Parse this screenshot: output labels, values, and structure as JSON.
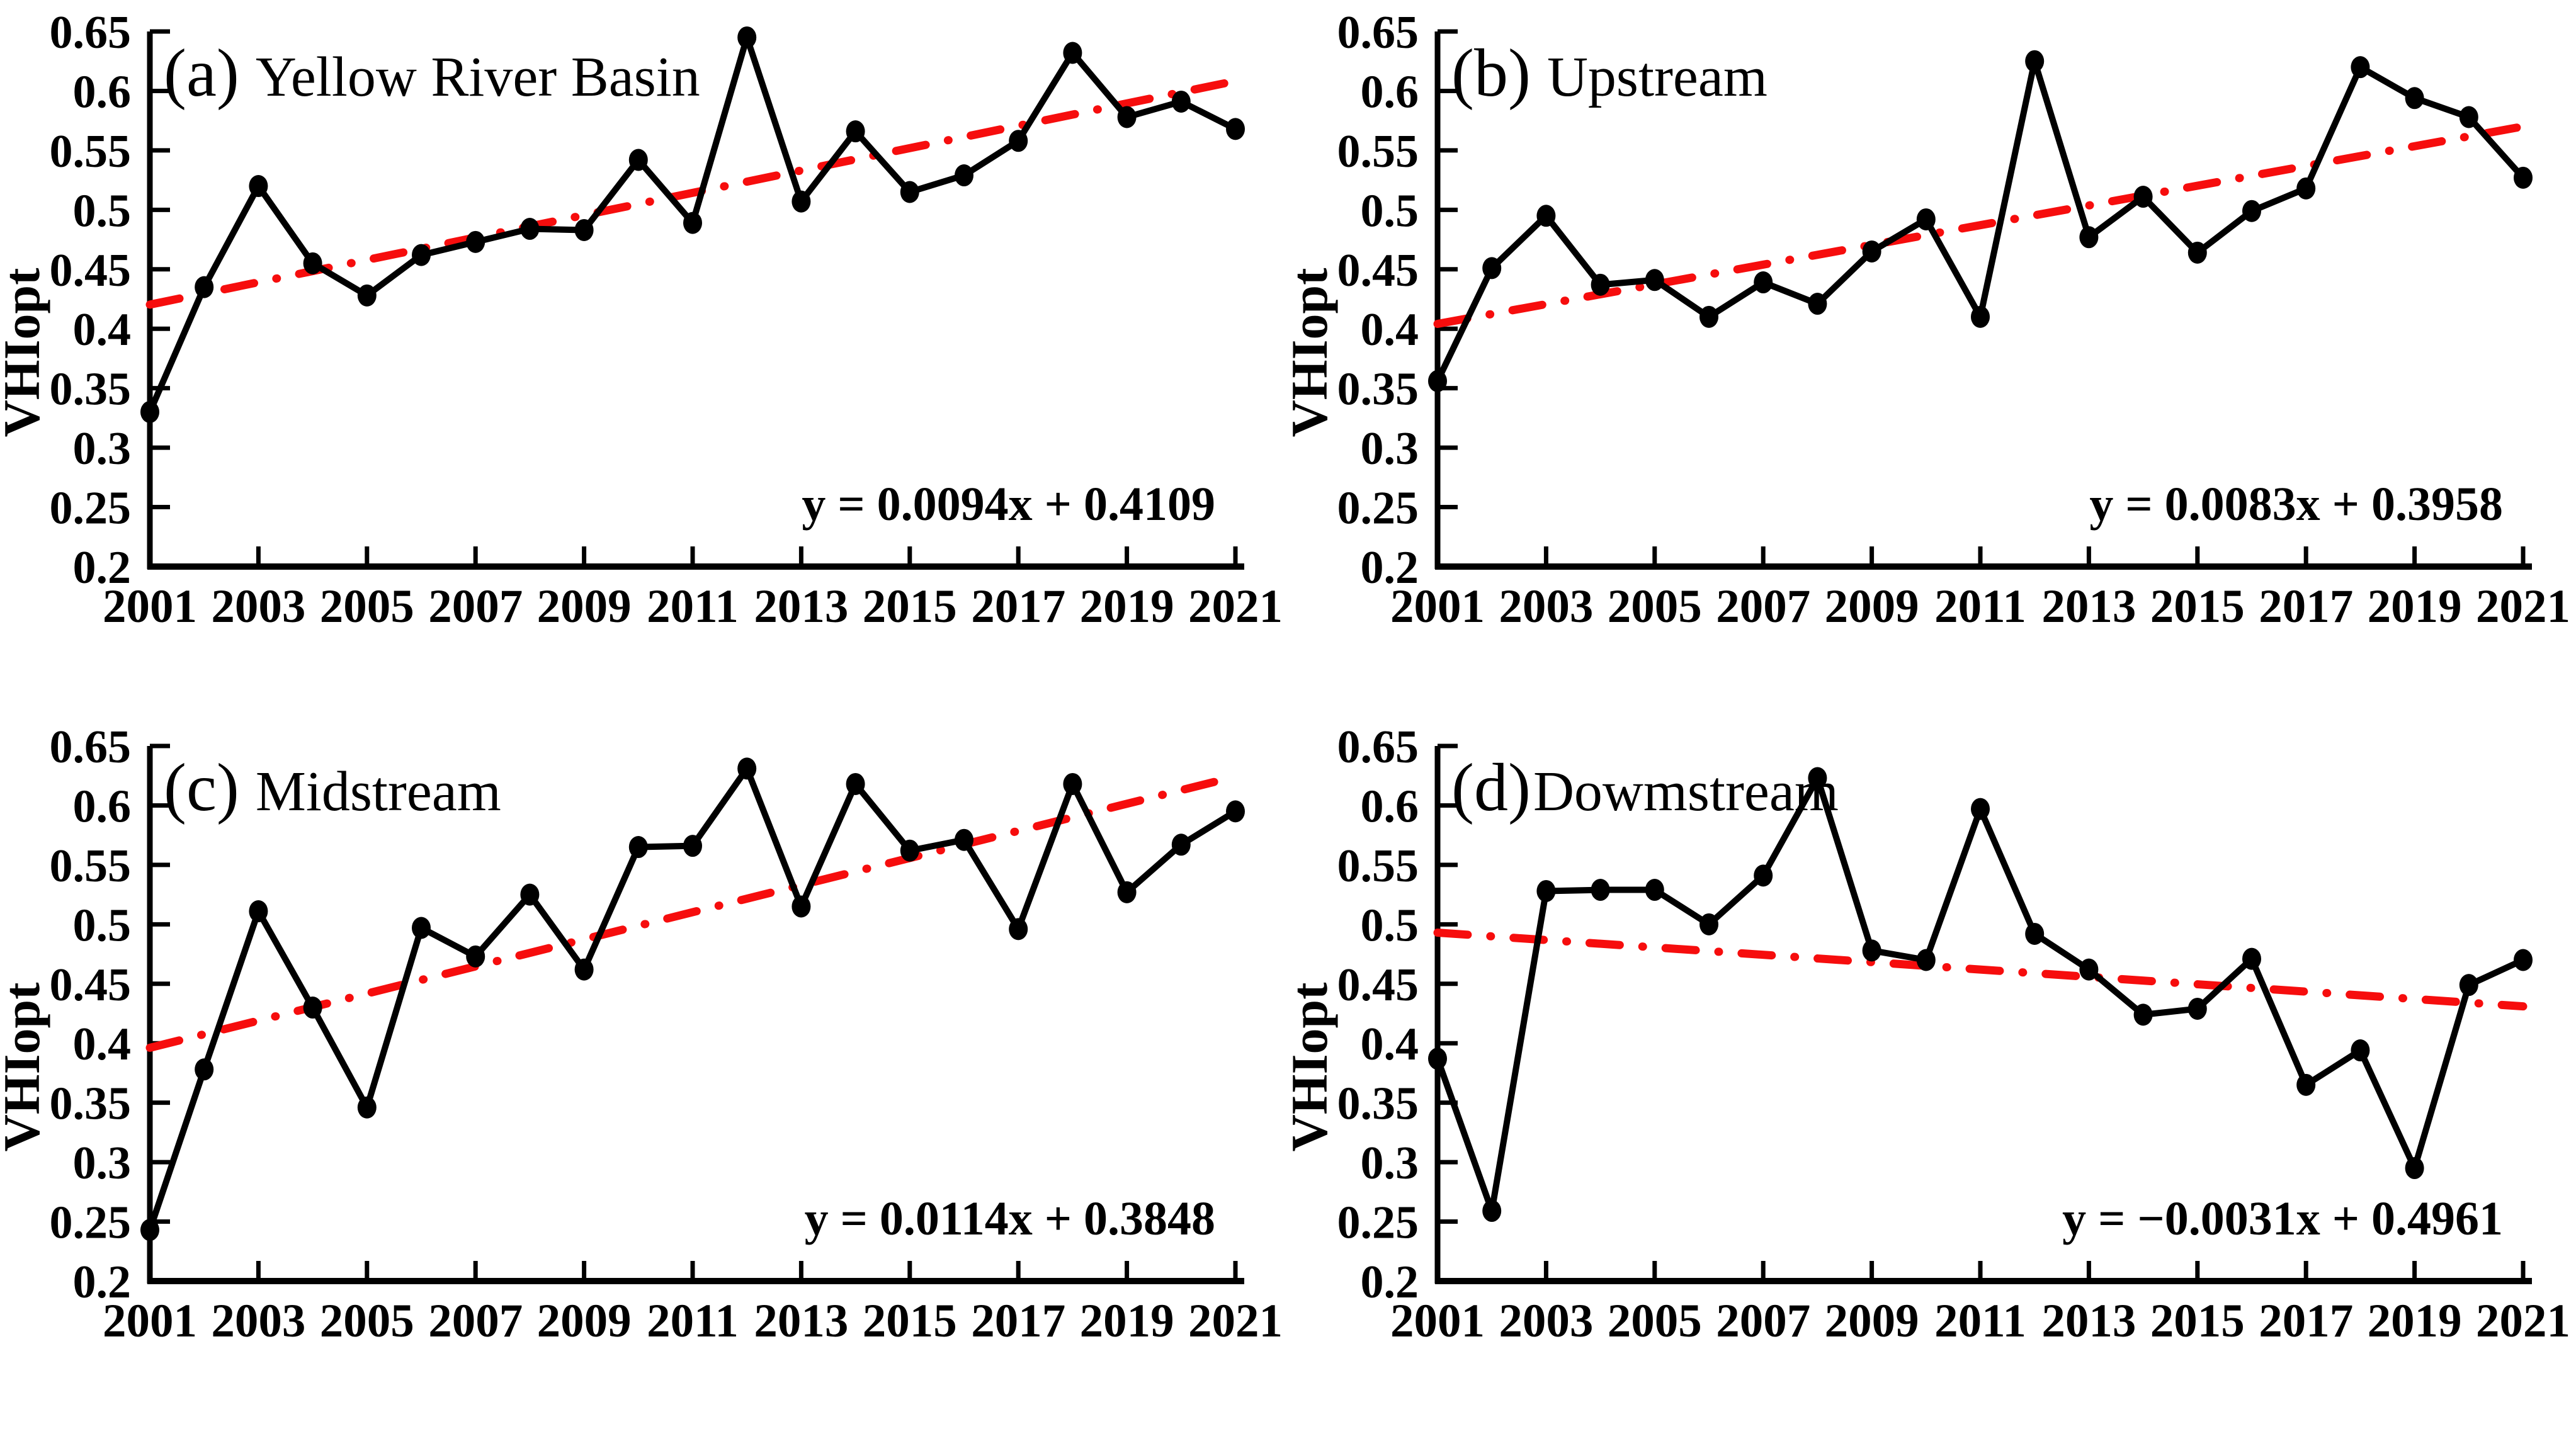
{
  "figure": {
    "background": "#ffffff",
    "axis_color": "#000000",
    "text_color": "#000000",
    "line_color": "#000000",
    "trend_color": "#f60d0d"
  },
  "chart_data": [
    {
      "type": "line",
      "panel_label": "(a)",
      "title": "Yellow River Basin",
      "title_separator": " ",
      "ylabel": "VHIopt",
      "equation": "y = 0.0094x + 0.4109",
      "trend_slope": 0.0094,
      "trend_intercept": 0.4109,
      "ylim": [
        0.2,
        0.65
      ],
      "ytick_labels": [
        "0.2",
        "0.25",
        "0.3",
        "0.35",
        "0.4",
        "0.45",
        "0.5",
        "0.55",
        "0.6",
        "0.65"
      ],
      "xtick_labels": [
        "2001",
        "2003",
        "2005",
        "2007",
        "2009",
        "2011",
        "2013",
        "2015",
        "2017",
        "2019",
        "2021"
      ],
      "xtick_mark_years": [
        2003,
        2005,
        2007,
        2009,
        2011,
        2013,
        2015,
        2017,
        2019,
        2021
      ],
      "x": [
        2001,
        2002,
        2003,
        2004,
        2005,
        2006,
        2007,
        2008,
        2009,
        2010,
        2011,
        2012,
        2013,
        2014,
        2015,
        2016,
        2017,
        2018,
        2019,
        2020,
        2021
      ],
      "values": [
        0.33,
        0.435,
        0.52,
        0.455,
        0.428,
        0.462,
        0.473,
        0.484,
        0.483,
        0.542,
        0.489,
        0.645,
        0.507,
        0.566,
        0.515,
        0.529,
        0.558,
        0.632,
        0.578,
        0.591,
        0.568
      ],
      "grid": false,
      "legend": null
    },
    {
      "type": "line",
      "panel_label": "(b)",
      "title": "Upstream",
      "title_separator": " ",
      "ylabel": "VHIopt",
      "equation": "y = 0.0083x + 0.3958",
      "trend_slope": 0.0083,
      "trend_intercept": 0.3958,
      "ylim": [
        0.2,
        0.65
      ],
      "ytick_labels": [
        "0.2",
        "0.25",
        "0.3",
        "0.35",
        "0.4",
        "0.45",
        "0.5",
        "0.55",
        "0.6",
        "0.65"
      ],
      "xtick_labels": [
        "2001",
        "2003",
        "2005",
        "2007",
        "2009",
        "2011",
        "2013",
        "2015",
        "2017",
        "2019",
        "2021"
      ],
      "xtick_mark_years": [
        2003,
        2005,
        2007,
        2009,
        2011,
        2013,
        2015,
        2017,
        2019,
        2021
      ],
      "x": [
        2001,
        2002,
        2003,
        2004,
        2005,
        2006,
        2007,
        2008,
        2009,
        2010,
        2011,
        2012,
        2013,
        2014,
        2015,
        2016,
        2017,
        2018,
        2019,
        2020,
        2021
      ],
      "values": [
        0.356,
        0.451,
        0.495,
        0.437,
        0.441,
        0.41,
        0.439,
        0.421,
        0.465,
        0.492,
        0.41,
        0.625,
        0.477,
        0.511,
        0.464,
        0.499,
        0.518,
        0.62,
        0.594,
        0.578,
        0.527
      ],
      "grid": false,
      "legend": null
    },
    {
      "type": "line",
      "panel_label": "(c)",
      "title": "Midstream",
      "title_separator": " ",
      "ylabel": "VHIopt",
      "equation": "y = 0.0114x + 0.3848",
      "trend_slope": 0.0114,
      "trend_intercept": 0.3848,
      "ylim": [
        0.2,
        0.65
      ],
      "ytick_labels": [
        "0.2",
        "0.25",
        "0.3",
        "0.35",
        "0.4",
        "0.45",
        "0.5",
        "0.55",
        "0.6",
        "0.65"
      ],
      "xtick_labels": [
        "2001",
        "2003",
        "2005",
        "2007",
        "2009",
        "2011",
        "2013",
        "2015",
        "2017",
        "2019",
        "2021"
      ],
      "xtick_mark_years": [
        2003,
        2005,
        2007,
        2009,
        2011,
        2013,
        2015,
        2017,
        2019,
        2021
      ],
      "x": [
        2001,
        2002,
        2003,
        2004,
        2005,
        2006,
        2007,
        2008,
        2009,
        2010,
        2011,
        2012,
        2013,
        2014,
        2015,
        2016,
        2017,
        2018,
        2019,
        2020,
        2021
      ],
      "values": [
        0.243,
        0.378,
        0.511,
        0.43,
        0.346,
        0.497,
        0.473,
        0.525,
        0.462,
        0.565,
        0.566,
        0.631,
        0.515,
        0.618,
        0.562,
        0.571,
        0.496,
        0.618,
        0.527,
        0.567,
        0.595
      ],
      "grid": false,
      "legend": null
    },
    {
      "type": "line",
      "panel_label": "(d)",
      "title": "Dowmstream",
      "title_separator": "",
      "ylabel": "VHIopt",
      "equation": "y = −0.0031x + 0.4961",
      "trend_slope": -0.0031,
      "trend_intercept": 0.4961,
      "ylim": [
        0.2,
        0.65
      ],
      "ytick_labels": [
        "0.2",
        "0.25",
        "0.3",
        "0.35",
        "0.4",
        "0.45",
        "0.5",
        "0.55",
        "0.6",
        "0.65"
      ],
      "xtick_labels": [
        "2001",
        "2003",
        "2005",
        "2007",
        "2009",
        "2011",
        "2013",
        "2015",
        "2017",
        "2019",
        "2021"
      ],
      "xtick_mark_years": [
        2003,
        2005,
        2007,
        2009,
        2011,
        2013,
        2015,
        2017,
        2019,
        2021
      ],
      "x": [
        2001,
        2002,
        2003,
        2004,
        2005,
        2006,
        2007,
        2008,
        2009,
        2010,
        2011,
        2012,
        2013,
        2014,
        2015,
        2016,
        2017,
        2018,
        2019,
        2020,
        2021
      ],
      "values": [
        0.387,
        0.259,
        0.528,
        0.529,
        0.529,
        0.5,
        0.541,
        0.623,
        0.478,
        0.47,
        0.597,
        0.492,
        0.462,
        0.424,
        0.429,
        0.471,
        0.365,
        0.394,
        0.295,
        0.449,
        0.47
      ],
      "grid": false,
      "legend": null
    }
  ]
}
